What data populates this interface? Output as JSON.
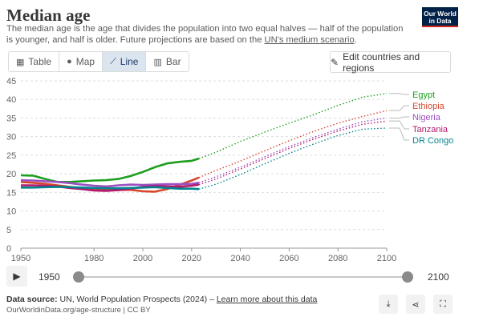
{
  "header": {
    "title": "Median age",
    "subtitle_a": "The median age is the age that divides the population into two equal halves — half of the population is younger, and half is older. Future projections are based on the ",
    "subtitle_link": "UN's medium scenario",
    "subtitle_b": ".",
    "logo_line1": "Our World",
    "logo_line2": "in Data"
  },
  "tabs": [
    {
      "label": "Table",
      "icon": "table-icon"
    },
    {
      "label": "Map",
      "icon": "globe-icon"
    },
    {
      "label": "Line",
      "icon": "line-chart-icon",
      "active": true
    },
    {
      "label": "Bar",
      "icon": "bar-chart-icon"
    }
  ],
  "edit_button": {
    "label": "Edit countries and regions",
    "icon": "pencil-icon"
  },
  "timeline": {
    "start_label": "1950",
    "end_label": "2100",
    "start_value": 1950,
    "end_value": 2100
  },
  "footer": {
    "source_prefix": "Data source:",
    "source_text": " UN, World Population Prospects (2024) – ",
    "source_link": "Learn more about this data",
    "url": "OurWorldinData.org/age-structure | CC BY"
  },
  "chart_data": {
    "type": "line",
    "title": "Median age",
    "xlim": [
      1950,
      2100
    ],
    "ylim": [
      0,
      45
    ],
    "x_ticks": [
      1950,
      1980,
      2000,
      2020,
      2040,
      2060,
      2080,
      2100
    ],
    "y_ticks": [
      0,
      5,
      10,
      15,
      20,
      25,
      30,
      35,
      40,
      45
    ],
    "grid": true,
    "legend": "right-end labels",
    "projection_start": 2023,
    "series": [
      {
        "name": "Egypt",
        "color": "#1e9e1e",
        "x": [
          1950,
          1955,
          1960,
          1965,
          1970,
          1975,
          1980,
          1985,
          1990,
          1995,
          2000,
          2005,
          2010,
          2015,
          2020,
          2023,
          2030,
          2040,
          2050,
          2060,
          2070,
          2080,
          2090,
          2100
        ],
        "y": [
          19.6,
          19.5,
          18.6,
          17.8,
          17.8,
          18.0,
          18.2,
          18.3,
          18.6,
          19.4,
          20.5,
          21.8,
          22.8,
          23.2,
          23.5,
          24.1,
          25.8,
          28.7,
          31.2,
          33.6,
          35.9,
          38.4,
          40.6,
          41.6
        ]
      },
      {
        "name": "Ethiopia",
        "color": "#d6482e",
        "x": [
          1950,
          1955,
          1960,
          1965,
          1970,
          1975,
          1980,
          1985,
          1990,
          1995,
          2000,
          2005,
          2010,
          2015,
          2020,
          2023,
          2030,
          2040,
          2050,
          2060,
          2070,
          2080,
          2090,
          2100
        ],
        "y": [
          17.8,
          17.6,
          17.3,
          16.9,
          16.5,
          16.1,
          15.8,
          15.6,
          15.6,
          15.7,
          15.3,
          15.2,
          15.9,
          17.0,
          18.2,
          19.0,
          20.9,
          23.4,
          26.2,
          28.9,
          31.4,
          33.6,
          35.4,
          37.0
        ]
      },
      {
        "name": "Nigeria",
        "color": "#9b4fc2",
        "x": [
          1950,
          1955,
          1960,
          1965,
          1970,
          1975,
          1980,
          1985,
          1990,
          1995,
          2000,
          2005,
          2010,
          2015,
          2020,
          2023,
          2030,
          2040,
          2050,
          2060,
          2070,
          2080,
          2090,
          2100
        ],
        "y": [
          18.3,
          18.2,
          18.0,
          17.8,
          17.5,
          17.1,
          16.8,
          16.6,
          16.9,
          17.1,
          17.0,
          17.1,
          17.2,
          17.2,
          17.3,
          17.6,
          19.2,
          21.8,
          24.6,
          27.3,
          29.8,
          32.0,
          34.0,
          35.0
        ]
      },
      {
        "name": "Tanzania",
        "color": "#b5176d",
        "x": [
          1950,
          1955,
          1960,
          1965,
          1970,
          1975,
          1980,
          1985,
          1990,
          1995,
          2000,
          2005,
          2010,
          2015,
          2020,
          2023,
          2030,
          2040,
          2050,
          2060,
          2070,
          2080,
          2090,
          2100
        ],
        "y": [
          16.9,
          16.9,
          16.8,
          16.6,
          16.2,
          15.9,
          15.5,
          15.4,
          15.6,
          16.0,
          16.5,
          16.7,
          16.6,
          16.5,
          16.8,
          17.1,
          18.6,
          21.3,
          24.1,
          26.8,
          29.3,
          31.5,
          33.3,
          34.2
        ]
      },
      {
        "name": "DR Congo",
        "color": "#00848e",
        "x": [
          1950,
          1955,
          1960,
          1965,
          1970,
          1975,
          1980,
          1985,
          1990,
          1995,
          2000,
          2005,
          2010,
          2015,
          2020,
          2023,
          2030,
          2040,
          2050,
          2060,
          2070,
          2080,
          2090,
          2100
        ],
        "y": [
          16.3,
          16.3,
          16.4,
          16.5,
          16.4,
          16.3,
          16.2,
          16.1,
          16.1,
          16.2,
          16.3,
          16.4,
          16.2,
          16.0,
          16.0,
          15.9,
          17.2,
          19.8,
          22.7,
          25.5,
          28.0,
          30.3,
          32.0,
          32.3
        ]
      }
    ]
  }
}
